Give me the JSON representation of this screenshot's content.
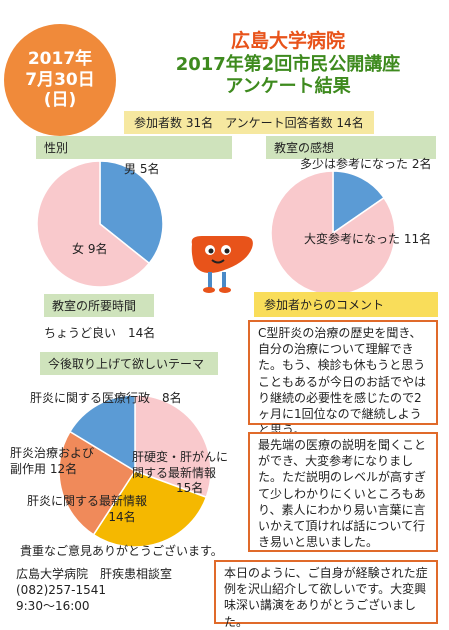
{
  "date": {
    "line1": "2017年",
    "line2": "7月30日",
    "line3": "(日)"
  },
  "title": {
    "hospital": "広島大学病院",
    "line2": "2017年第2回市民公開講座",
    "line3": "アンケート結果"
  },
  "summary": "参加者数 31名　アンケート回答者数 14名",
  "sections": {
    "gender": "性別",
    "impression": "教室の感想",
    "duration": "教室の所要時間",
    "themes": "今後取り上げて欲しいテーマ",
    "comments": "参加者からのコメント"
  },
  "duration_answer": "ちょうど良い　14名",
  "chart_data": [
    {
      "type": "pie",
      "title": "性別",
      "categories": [
        "男",
        "女"
      ],
      "values": [
        5,
        9
      ],
      "labels": [
        "男 5名",
        "女 9名"
      ],
      "colors": [
        "#5b9bd5",
        "#f9c9cc"
      ]
    },
    {
      "type": "pie",
      "title": "教室の感想",
      "categories": [
        "多少は参考になった",
        "大変参考になった"
      ],
      "values": [
        2,
        11
      ],
      "labels": [
        "多少は参考になった 2名",
        "大変参考になった 11名"
      ],
      "colors": [
        "#5b9bd5",
        "#f9c9cc"
      ]
    },
    {
      "type": "pie",
      "title": "今後取り上げて欲しいテーマ",
      "categories": [
        "肝炎に関する医療行政",
        "肝硬変・肝がんに関する最新情報",
        "肝炎に関する最新情報",
        "肝炎治療および副作用"
      ],
      "values": [
        8,
        15,
        14,
        12
      ],
      "labels": [
        "肝炎に関する医療行政　8名",
        "肝硬変・肝がんに関する最新情報 15名",
        "肝炎に関する最新情報 14名",
        "肝炎治療および副作用 12名"
      ],
      "colors": [
        "#5b9bd5",
        "#f9c9cc",
        "#f5b800",
        "#f08a5a"
      ]
    }
  ],
  "pie_text": {
    "gender_male": "男 5名",
    "gender_female": "女 9名",
    "impr_some": "多少は参考になった 2名",
    "impr_great": "大変参考になった 11名",
    "theme_admin": "肝炎に関する医療行政　8名",
    "theme_cirrhosis_1": "肝硬変・肝がんに",
    "theme_cirrhosis_2": "関する最新情報",
    "theme_cirrhosis_3": "15名",
    "theme_treat_1": "肝炎治療および",
    "theme_treat_2": "副作用 12名",
    "theme_latest_1": "肝炎に関する最新情報",
    "theme_latest_2": "14名"
  },
  "comments": [
    "C型肝炎の治療の歴史を聞き、自分の治療について理解できた。もう、検診も休もうと思うこともあるが今日のお話でやはり継続の必要性を感じたので2ヶ月に1回位なので継続しようと思う。",
    "最先端の医療の説明を聞くことができ、大変参考になりました。ただ説明のレベルが高すぎて少しわかりにくいところもあり、素人にわかり易い言葉に言いかえて頂ければ話について行き易いと思いました。",
    "本日のように、ご自身が経験された症例を沢山紹介して欲しいです。大変興味深い講演をありがとうございました。"
  ],
  "footer": {
    "thanks": "貴重なご意見ありがとうございます。",
    "dept": "広島大学病院　肝疾患相談室",
    "phone": "(082)257-1541",
    "hours": "9:30〜16:00"
  }
}
